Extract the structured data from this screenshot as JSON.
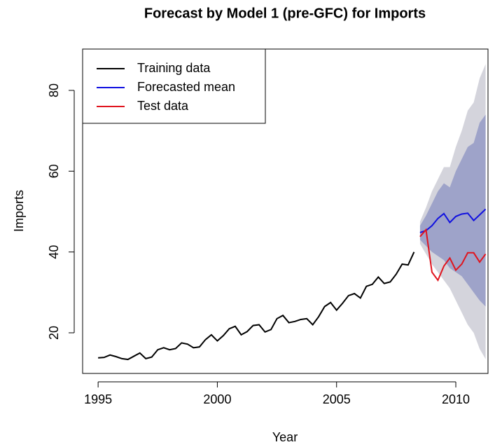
{
  "chart_data": {
    "type": "line",
    "title": "Forecast by Model 1 (pre-GFC) for Imports",
    "x_label": "Year",
    "y_label": "Imports",
    "xlim": [
      1994.35,
      2011.35
    ],
    "ylim": [
      9.94,
      90.23
    ],
    "xticks": [
      1995,
      2000,
      2005,
      2010
    ],
    "yticks": [
      20,
      40,
      60,
      80
    ],
    "legend": "topleft",
    "box": true,
    "bands": [
      {
        "color": "#d4d4dc",
        "x": [
          2008.5,
          2008.75,
          2009,
          2009.25,
          2009.5,
          2009.75,
          2010,
          2010.25,
          2010.5,
          2010.75,
          2011,
          2011.25
        ],
        "lower": [
          42,
          39.5,
          37,
          35,
          33,
          31,
          28,
          25,
          22,
          20,
          16,
          13.5
        ],
        "upper": [
          47.5,
          51,
          55,
          58,
          61,
          61,
          66,
          70,
          75,
          77,
          83,
          86.5
        ]
      },
      {
        "color": "#9ea3c9",
        "x": [
          2008.5,
          2008.75,
          2009,
          2009.25,
          2009.5,
          2009.75,
          2010,
          2010.25,
          2010.5,
          2010.75,
          2011,
          2011.25
        ],
        "lower": [
          43,
          41.5,
          40,
          39,
          38,
          36,
          35,
          34,
          32,
          30,
          28,
          26.5
        ],
        "upper": [
          46.5,
          49,
          52,
          55,
          57,
          56,
          60,
          63,
          66,
          67,
          72,
          74
        ]
      }
    ],
    "series": [
      {
        "name": "Training data",
        "color": "#000000",
        "x": [
          1995,
          1995.25,
          1995.5,
          1995.75,
          1996,
          1996.25,
          1996.5,
          1996.75,
          1997,
          1997.25,
          1997.5,
          1997.75,
          1998,
          1998.25,
          1998.5,
          1998.75,
          1999,
          1999.25,
          1999.5,
          1999.75,
          2000,
          2000.25,
          2000.5,
          2000.75,
          2001,
          2001.25,
          2001.5,
          2001.75,
          2002,
          2002.25,
          2002.5,
          2002.75,
          2003,
          2003.25,
          2003.5,
          2003.75,
          2004,
          2004.25,
          2004.5,
          2004.75,
          2005,
          2005.25,
          2005.5,
          2005.75,
          2006,
          2006.25,
          2006.5,
          2006.75,
          2007,
          2007.25,
          2007.5,
          2007.75,
          2008,
          2008.25
        ],
        "values": [
          13.8,
          13.9,
          14.5,
          14.1,
          13.6,
          13.4,
          14.2,
          15.0,
          13.6,
          14.0,
          15.8,
          16.3,
          15.8,
          16.1,
          17.5,
          17.2,
          16.3,
          16.5,
          18.3,
          19.5,
          18.0,
          19.3,
          21.0,
          21.6,
          19.5,
          20.3,
          21.8,
          22.0,
          20.2,
          20.8,
          23.5,
          24.3,
          22.5,
          22.8,
          23.3,
          23.5,
          22.0,
          24.0,
          26.5,
          27.5,
          25.6,
          27.3,
          29.2,
          29.7,
          28.6,
          31.5,
          32.0,
          33.8,
          32.2,
          32.6,
          34.5,
          37.0,
          36.8,
          40.0
        ]
      },
      {
        "name": "Forecasted mean",
        "color": "#1010e0",
        "x": [
          2008.5,
          2008.75,
          2009,
          2009.25,
          2009.5,
          2009.75,
          2010,
          2010.25,
          2010.5,
          2010.75,
          2011,
          2011.25
        ],
        "values": [
          44.8,
          45.3,
          46.5,
          48.3,
          49.5,
          47.3,
          48.8,
          49.4,
          49.6,
          47.8,
          49.2,
          50.6
        ]
      },
      {
        "name": "Test data",
        "color": "#e0141e",
        "x": [
          2008.5,
          2008.75,
          2009,
          2009.25,
          2009.5,
          2009.75,
          2010,
          2010.25,
          2010.5,
          2010.75,
          2011,
          2011.25
        ],
        "values": [
          43.8,
          45.5,
          35.0,
          33.0,
          36.5,
          38.5,
          35.5,
          37.0,
          39.8,
          39.8,
          37.5,
          39.5
        ]
      }
    ]
  }
}
